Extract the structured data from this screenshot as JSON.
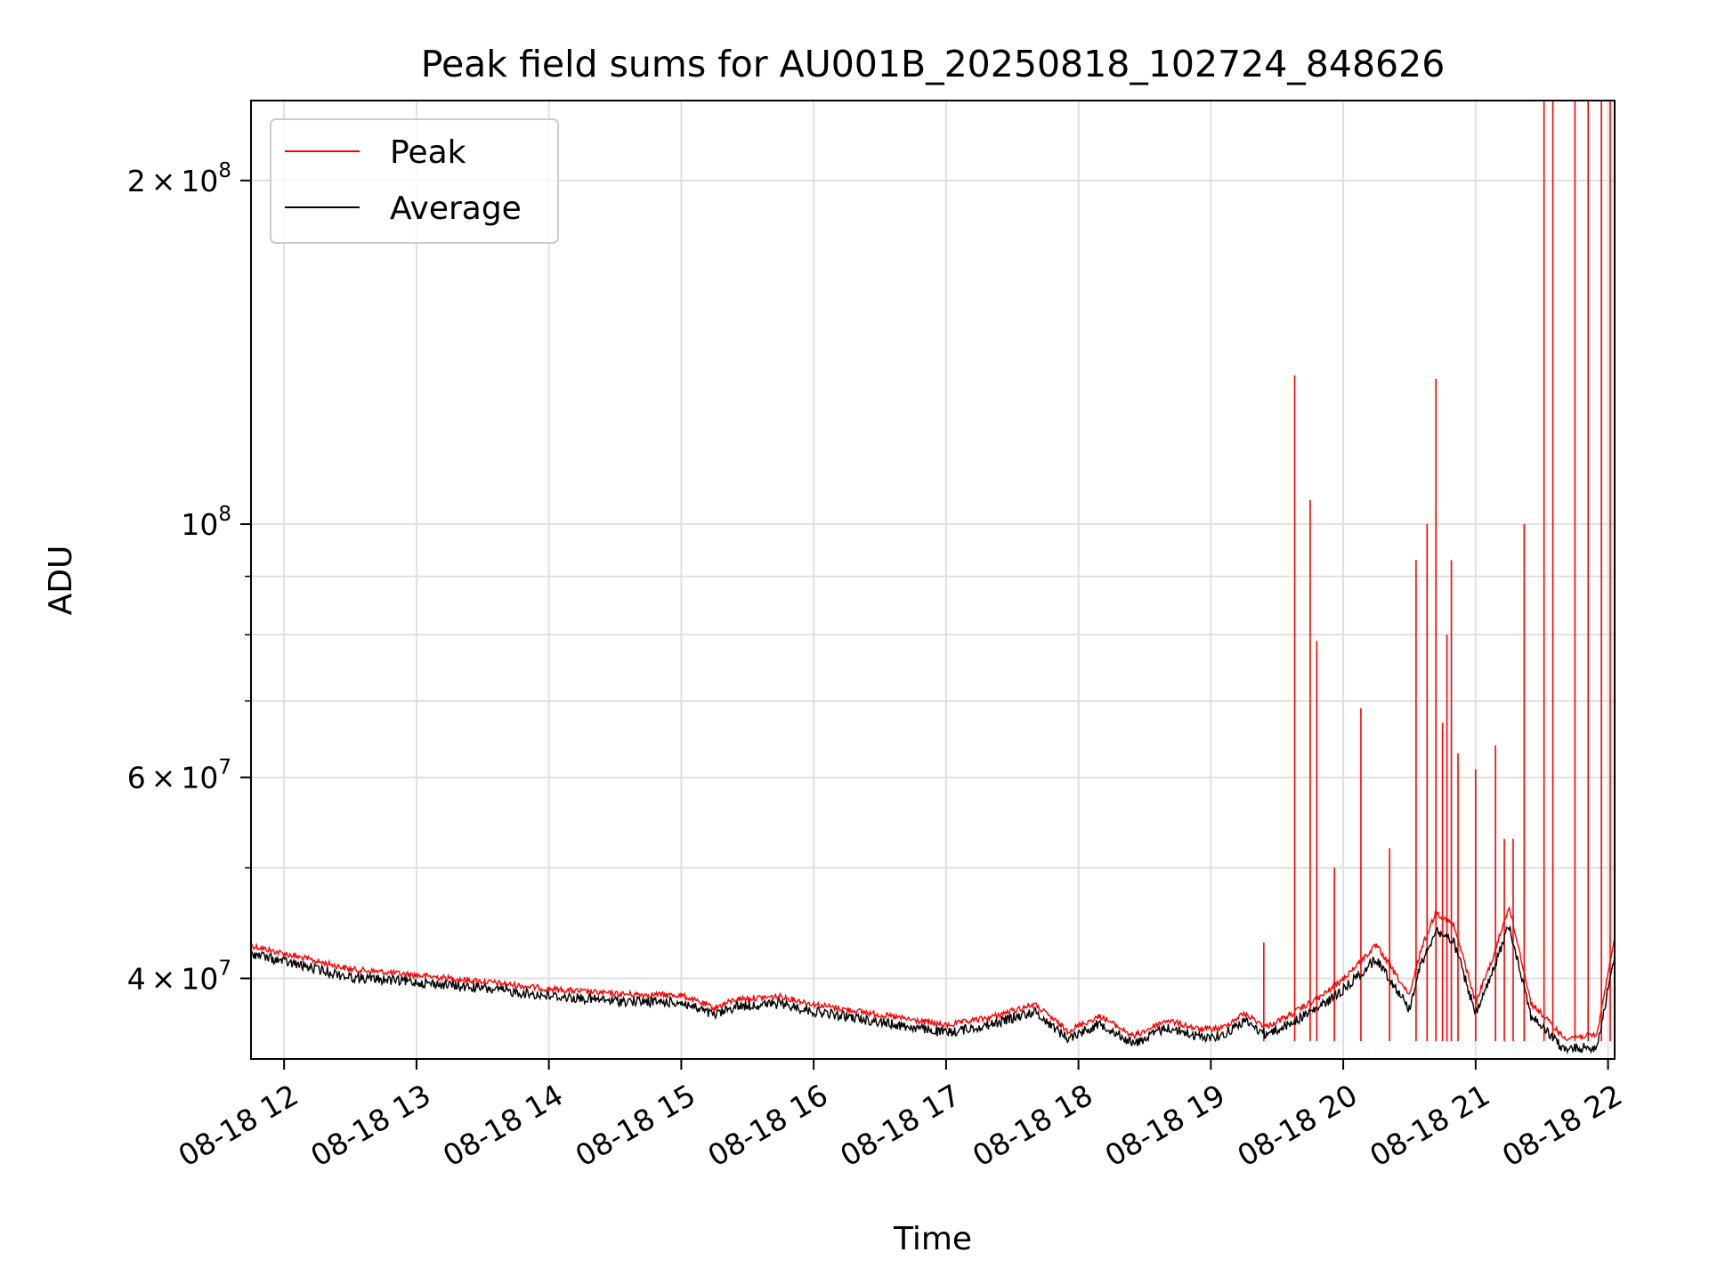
{
  "chart_data": {
    "type": "line",
    "title": "Peak field sums for AU001B_20250818_102724_848626",
    "xlabel": "Time",
    "ylabel": "ADU",
    "yscale": "log",
    "xlim": [
      "2025-08-18T11:45",
      "2025-08-18T22:03"
    ],
    "ylim": [
      34000000,
      235000000
    ],
    "grid": true,
    "legend_position": "upper-left",
    "legend": [
      "Peak",
      "Average"
    ],
    "x_ticks": [
      {
        "label": "08-18 12",
        "value": "2025-08-18T12:00"
      },
      {
        "label": "08-18 13",
        "value": "2025-08-18T13:00"
      },
      {
        "label": "08-18 14",
        "value": "2025-08-18T14:00"
      },
      {
        "label": "08-18 15",
        "value": "2025-08-18T15:00"
      },
      {
        "label": "08-18 16",
        "value": "2025-08-18T16:00"
      },
      {
        "label": "08-18 17",
        "value": "2025-08-18T17:00"
      },
      {
        "label": "08-18 18",
        "value": "2025-08-18T18:00"
      },
      {
        "label": "08-18 19",
        "value": "2025-08-18T19:00"
      },
      {
        "label": "08-18 20",
        "value": "2025-08-18T20:00"
      },
      {
        "label": "08-18 21",
        "value": "2025-08-18T21:00"
      },
      {
        "label": "08-18 22",
        "value": "2025-08-18T22:00"
      }
    ],
    "y_ticks": [
      {
        "base": "4",
        "exp": "7",
        "value": 40000000
      },
      {
        "base": "6",
        "exp": "7",
        "value": 60000000
      },
      {
        "base": "",
        "exp": "8",
        "value": 100000000
      },
      {
        "base": "2",
        "exp": "8",
        "value": 200000000
      }
    ],
    "y_minor_ticks": [
      50000000,
      70000000,
      80000000,
      90000000
    ],
    "colors": {
      "peak": "#ff0000",
      "average": "#000000",
      "grid": "#e0e0e0"
    },
    "series": [
      {
        "name": "Average",
        "color": "#000000",
        "x": [
          "2025-08-18T11:45",
          "2025-08-18T12:00",
          "2025-08-18T12:30",
          "2025-08-18T13:00",
          "2025-08-18T13:30",
          "2025-08-18T14:00",
          "2025-08-18T14:30",
          "2025-08-18T15:00",
          "2025-08-18T15:15",
          "2025-08-18T15:25",
          "2025-08-18T15:45",
          "2025-08-18T16:00",
          "2025-08-18T16:30",
          "2025-08-18T17:00",
          "2025-08-18T17:20",
          "2025-08-18T17:40",
          "2025-08-18T17:55",
          "2025-08-18T18:10",
          "2025-08-18T18:25",
          "2025-08-18T18:40",
          "2025-08-18T18:55",
          "2025-08-18T19:05",
          "2025-08-18T19:15",
          "2025-08-18T19:25",
          "2025-08-18T19:35",
          "2025-08-18T19:50",
          "2025-08-18T20:00",
          "2025-08-18T20:15",
          "2025-08-18T20:30",
          "2025-08-18T20:35",
          "2025-08-18T20:42",
          "2025-08-18T20:50",
          "2025-08-18T21:00",
          "2025-08-18T21:08",
          "2025-08-18T21:15",
          "2025-08-18T21:25",
          "2025-08-18T21:40",
          "2025-08-18T21:55",
          "2025-08-18T22:03"
        ],
        "values": [
          42500000,
          41800000,
          40500000,
          40100000,
          39600000,
          39000000,
          38600000,
          38500000,
          37500000,
          38200000,
          38400000,
          37800000,
          37000000,
          36200000,
          36800000,
          37800000,
          35800000,
          36900000,
          35400000,
          36600000,
          35900000,
          36000000,
          37100000,
          36100000,
          36800000,
          38200000,
          39500000,
          42000000,
          38000000,
          41500000,
          44500000,
          43500000,
          37500000,
          41000000,
          45000000,
          37500000,
          35000000,
          35200000,
          42000000
        ]
      },
      {
        "name": "Peak",
        "color": "#ff0000",
        "x": [
          "2025-08-18T11:45",
          "2025-08-18T12:00",
          "2025-08-18T12:30",
          "2025-08-18T13:00",
          "2025-08-18T13:30",
          "2025-08-18T14:00",
          "2025-08-18T14:30",
          "2025-08-18T15:00",
          "2025-08-18T15:15",
          "2025-08-18T15:25",
          "2025-08-18T15:45",
          "2025-08-18T16:00",
          "2025-08-18T16:30",
          "2025-08-18T17:00",
          "2025-08-18T17:20",
          "2025-08-18T17:40",
          "2025-08-18T17:55",
          "2025-08-18T18:10",
          "2025-08-18T18:25",
          "2025-08-18T18:40",
          "2025-08-18T18:55",
          "2025-08-18T19:05",
          "2025-08-18T19:15",
          "2025-08-18T19:25",
          "2025-08-18T19:35",
          "2025-08-18T19:50",
          "2025-08-18T20:00",
          "2025-08-18T20:15",
          "2025-08-18T20:30",
          "2025-08-18T20:35",
          "2025-08-18T20:42",
          "2025-08-18T20:50",
          "2025-08-18T21:00",
          "2025-08-18T21:08",
          "2025-08-18T21:15",
          "2025-08-18T21:25",
          "2025-08-18T21:40",
          "2025-08-18T21:55",
          "2025-08-18T22:03"
        ],
        "values": [
          43000000,
          42300000,
          41000000,
          40500000,
          40000000,
          39400000,
          39000000,
          38900000,
          37900000,
          38600000,
          38800000,
          38200000,
          37400000,
          36600000,
          37200000,
          38200000,
          36200000,
          37300000,
          35800000,
          37000000,
          36300000,
          36400000,
          37500000,
          36500000,
          37300000,
          38800000,
          40200000,
          43000000,
          38800000,
          42500000,
          46000000,
          44800000,
          38300000,
          42000000,
          46500000,
          38300000,
          35700000,
          35900000,
          43500000
        ],
        "spikes": [
          {
            "x": "2025-08-18T19:24",
            "value": 43000000
          },
          {
            "x": "2025-08-18T19:38",
            "value": 135000000
          },
          {
            "x": "2025-08-18T19:45",
            "value": 105000000
          },
          {
            "x": "2025-08-18T19:48",
            "value": 79000000
          },
          {
            "x": "2025-08-18T19:56",
            "value": 50000000
          },
          {
            "x": "2025-08-18T20:08",
            "value": 69000000
          },
          {
            "x": "2025-08-18T20:21",
            "value": 52000000
          },
          {
            "x": "2025-08-18T20:33",
            "value": 93000000
          },
          {
            "x": "2025-08-18T20:38",
            "value": 100000000
          },
          {
            "x": "2025-08-18T20:42",
            "value": 134000000
          },
          {
            "x": "2025-08-18T20:45",
            "value": 67000000
          },
          {
            "x": "2025-08-18T20:47",
            "value": 80000000
          },
          {
            "x": "2025-08-18T20:49",
            "value": 93000000
          },
          {
            "x": "2025-08-18T20:52",
            "value": 63000000
          },
          {
            "x": "2025-08-18T21:00",
            "value": 61000000
          },
          {
            "x": "2025-08-18T21:09",
            "value": 64000000
          },
          {
            "x": "2025-08-18T21:13",
            "value": 53000000
          },
          {
            "x": "2025-08-18T21:17",
            "value": 53000000
          },
          {
            "x": "2025-08-18T21:22",
            "value": 100000000
          },
          {
            "x": "2025-08-18T21:31",
            "value": 235000000
          },
          {
            "x": "2025-08-18T21:35",
            "value": 235000000
          },
          {
            "x": "2025-08-18T21:45",
            "value": 235000000
          },
          {
            "x": "2025-08-18T21:51",
            "value": 235000000
          },
          {
            "x": "2025-08-18T21:57",
            "value": 235000000
          },
          {
            "x": "2025-08-18T22:01",
            "value": 235000000
          }
        ]
      }
    ]
  }
}
